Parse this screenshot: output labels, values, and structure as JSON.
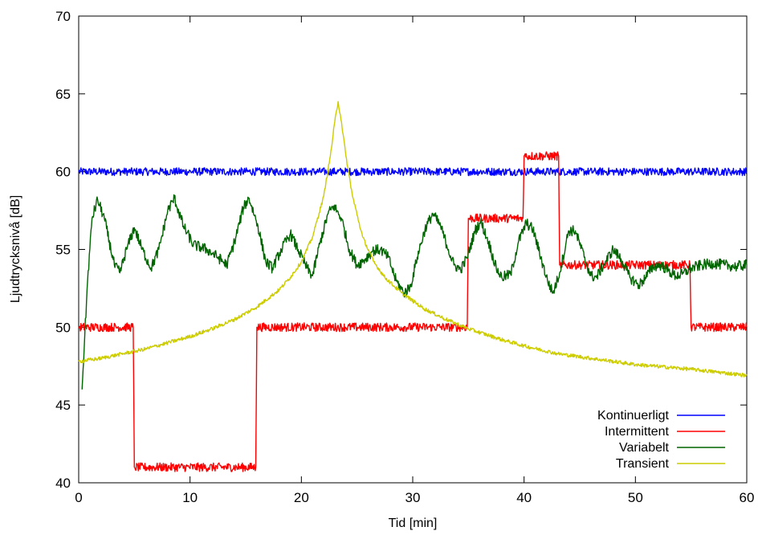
{
  "chart_data": {
    "type": "line",
    "xlabel": "Tid [min]",
    "ylabel": "Ljudtrycksnivå [dB]",
    "xlim": [
      0,
      60
    ],
    "ylim": [
      40,
      70
    ],
    "xticks": [
      "0",
      "10",
      "20",
      "30",
      "40",
      "50",
      "60"
    ],
    "yticks": [
      "40",
      "45",
      "50",
      "55",
      "60",
      "65",
      "70"
    ],
    "grid": false,
    "legend_position": "bottom-right",
    "series": [
      {
        "name": "Kontinuerligt",
        "color": "#0000ff",
        "points": [
          [
            0,
            60
          ],
          [
            60,
            60
          ]
        ]
      },
      {
        "name": "Intermittent",
        "color": "#ff0000",
        "points": [
          [
            0,
            50
          ],
          [
            4.9,
            50
          ],
          [
            5,
            41
          ],
          [
            15.9,
            41
          ],
          [
            16,
            50
          ],
          [
            34.9,
            50
          ],
          [
            35,
            57
          ],
          [
            39.9,
            57
          ],
          [
            40,
            61
          ],
          [
            43.1,
            61
          ],
          [
            43.2,
            54
          ],
          [
            54.9,
            54
          ],
          [
            55,
            50
          ],
          [
            60,
            50
          ]
        ]
      },
      {
        "name": "Variabelt",
        "color": "#006400",
        "points": [
          [
            0.3,
            46
          ],
          [
            0.8,
            53
          ],
          [
            1.2,
            57
          ],
          [
            1.7,
            58.2
          ],
          [
            2.3,
            57
          ],
          [
            3.2,
            54
          ],
          [
            3.7,
            53.5
          ],
          [
            4.3,
            55
          ],
          [
            5,
            56.4
          ],
          [
            5.7,
            55
          ],
          [
            6.5,
            53.8
          ],
          [
            7.2,
            55
          ],
          [
            8,
            57.5
          ],
          [
            8.6,
            58.3
          ],
          [
            9.4,
            56.5
          ],
          [
            10.3,
            55.3
          ],
          [
            11.5,
            55
          ],
          [
            12.5,
            54.5
          ],
          [
            13.3,
            54
          ],
          [
            14,
            55.5
          ],
          [
            14.8,
            57.7
          ],
          [
            15.3,
            58.3
          ],
          [
            16.1,
            56.5
          ],
          [
            16.8,
            54.2
          ],
          [
            17.4,
            53.8
          ],
          [
            18.2,
            55
          ],
          [
            19,
            56
          ],
          [
            19.7,
            55
          ],
          [
            20.5,
            53.8
          ],
          [
            21,
            53.3
          ],
          [
            21.7,
            55.5
          ],
          [
            22.4,
            57.3
          ],
          [
            22.9,
            57.8
          ],
          [
            23.6,
            57
          ],
          [
            24.3,
            55
          ],
          [
            25,
            54
          ],
          [
            25.6,
            54.3
          ],
          [
            26.4,
            54.9
          ],
          [
            27.1,
            55
          ],
          [
            27.8,
            54.5
          ],
          [
            28.5,
            53
          ],
          [
            29.2,
            52.2
          ],
          [
            29.8,
            52.6
          ],
          [
            30.4,
            54.5
          ],
          [
            31.1,
            56.3
          ],
          [
            31.8,
            57.3
          ],
          [
            32.5,
            56.5
          ],
          [
            33.2,
            55
          ],
          [
            33.7,
            54
          ],
          [
            34.3,
            53.7
          ],
          [
            34.9,
            54.5
          ],
          [
            35.6,
            56.2
          ],
          [
            36.1,
            56.8
          ],
          [
            36.8,
            55.5
          ],
          [
            37.5,
            53.8
          ],
          [
            38,
            53.2
          ],
          [
            38.8,
            53.4
          ],
          [
            39.5,
            55.5
          ],
          [
            40.2,
            56.7
          ],
          [
            40.8,
            56.3
          ],
          [
            41.5,
            54.5
          ],
          [
            42.1,
            53
          ],
          [
            42.6,
            52.2
          ],
          [
            43.2,
            53.5
          ],
          [
            44,
            56.2
          ],
          [
            44.6,
            56.2
          ],
          [
            45.4,
            54.5
          ],
          [
            46,
            53.3
          ],
          [
            46.5,
            53.2
          ],
          [
            47.3,
            54.2
          ],
          [
            48,
            55
          ],
          [
            48.7,
            54.4
          ],
          [
            49.5,
            53.2
          ],
          [
            50.3,
            52.7
          ],
          [
            50.9,
            53.2
          ],
          [
            51.6,
            53.9
          ],
          [
            52.3,
            54
          ],
          [
            53,
            53.6
          ],
          [
            53.6,
            53.3
          ],
          [
            54.2,
            53.4
          ],
          [
            55,
            53.8
          ],
          [
            56,
            54
          ],
          [
            57,
            54.1
          ],
          [
            58,
            54
          ],
          [
            59,
            53.9
          ],
          [
            60,
            54
          ]
        ]
      },
      {
        "name": "Transient",
        "color": "#cccc00",
        "points": [
          [
            0,
            47.8
          ],
          [
            2,
            48
          ],
          [
            4,
            48.3
          ],
          [
            6,
            48.6
          ],
          [
            8,
            49
          ],
          [
            10,
            49.4
          ],
          [
            12,
            49.9
          ],
          [
            14,
            50.5
          ],
          [
            16,
            51.3
          ],
          [
            18,
            52.4
          ],
          [
            19,
            53.2
          ],
          [
            20,
            54.2
          ],
          [
            21,
            55.8
          ],
          [
            22,
            58.4
          ],
          [
            22.6,
            61
          ],
          [
            23,
            63.2
          ],
          [
            23.3,
            64.5
          ],
          [
            23.6,
            63.2
          ],
          [
            24,
            61
          ],
          [
            24.6,
            58.4
          ],
          [
            25.5,
            55.8
          ],
          [
            26.5,
            54.2
          ],
          [
            27.5,
            53.2
          ],
          [
            29,
            52.2
          ],
          [
            31,
            51.2
          ],
          [
            33,
            50.5
          ],
          [
            35,
            49.9
          ],
          [
            38,
            49.2
          ],
          [
            40,
            48.8
          ],
          [
            43,
            48.3
          ],
          [
            46,
            48
          ],
          [
            50,
            47.6
          ],
          [
            55,
            47.3
          ],
          [
            60,
            46.9
          ]
        ]
      }
    ]
  }
}
